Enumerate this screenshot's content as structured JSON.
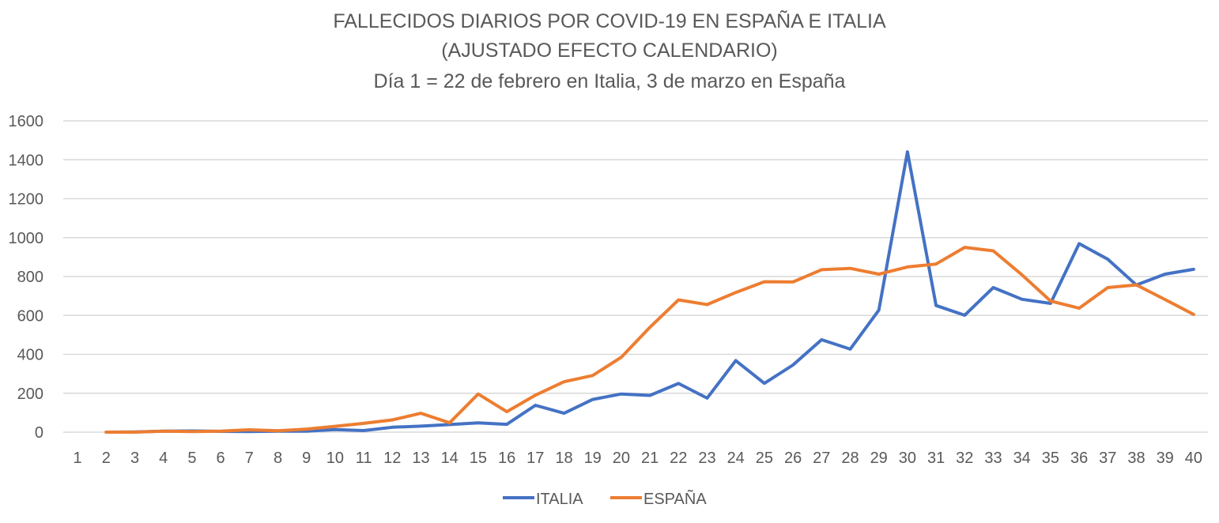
{
  "chart_data": {
    "type": "line",
    "title": [
      "FALLECIDOS DIARIOS POR COVID-19 EN ESPAÑA E ITALIA",
      "(AJUSTADO EFECTO CALENDARIO)",
      "Día 1 = 22 de febrero en Italia, 3 de marzo en España"
    ],
    "categories": [
      1,
      2,
      3,
      4,
      5,
      6,
      7,
      8,
      9,
      10,
      11,
      12,
      13,
      14,
      15,
      16,
      17,
      18,
      19,
      20,
      21,
      22,
      23,
      24,
      25,
      26,
      27,
      28,
      29,
      30,
      31,
      32,
      33,
      34,
      35,
      36,
      37,
      38,
      39,
      40
    ],
    "ylim": [
      0,
      1600
    ],
    "yticks": [
      0,
      200,
      400,
      600,
      800,
      1000,
      1200,
      1400,
      1600
    ],
    "grid": true,
    "legend_position": "bottom",
    "series": [
      {
        "name": "ITALIA",
        "color": "#4472C4",
        "values": [
          null,
          0,
          1,
          5,
          6,
          4,
          3,
          5,
          5,
          13,
          8,
          25,
          31,
          39,
          48,
          40,
          138,
          97,
          168,
          196,
          189,
          250,
          175,
          368,
          251,
          345,
          475,
          427,
          627,
          1441,
          651,
          601,
          743,
          683,
          662,
          969,
          889,
          756,
          812,
          837
        ]
      },
      {
        "name": "ESPAÑA",
        "color": "#ED7D31",
        "values": [
          null,
          0,
          0,
          5,
          3,
          5,
          12,
          7,
          16,
          30,
          45,
          63,
          97,
          48,
          196,
          105,
          190,
          259,
          291,
          385,
          539,
          680,
          656,
          718,
          773,
          772,
          835,
          842,
          812,
          849,
          864,
          950,
          932,
          809,
          674,
          637,
          743,
          757,
          682,
          605
        ]
      }
    ]
  }
}
